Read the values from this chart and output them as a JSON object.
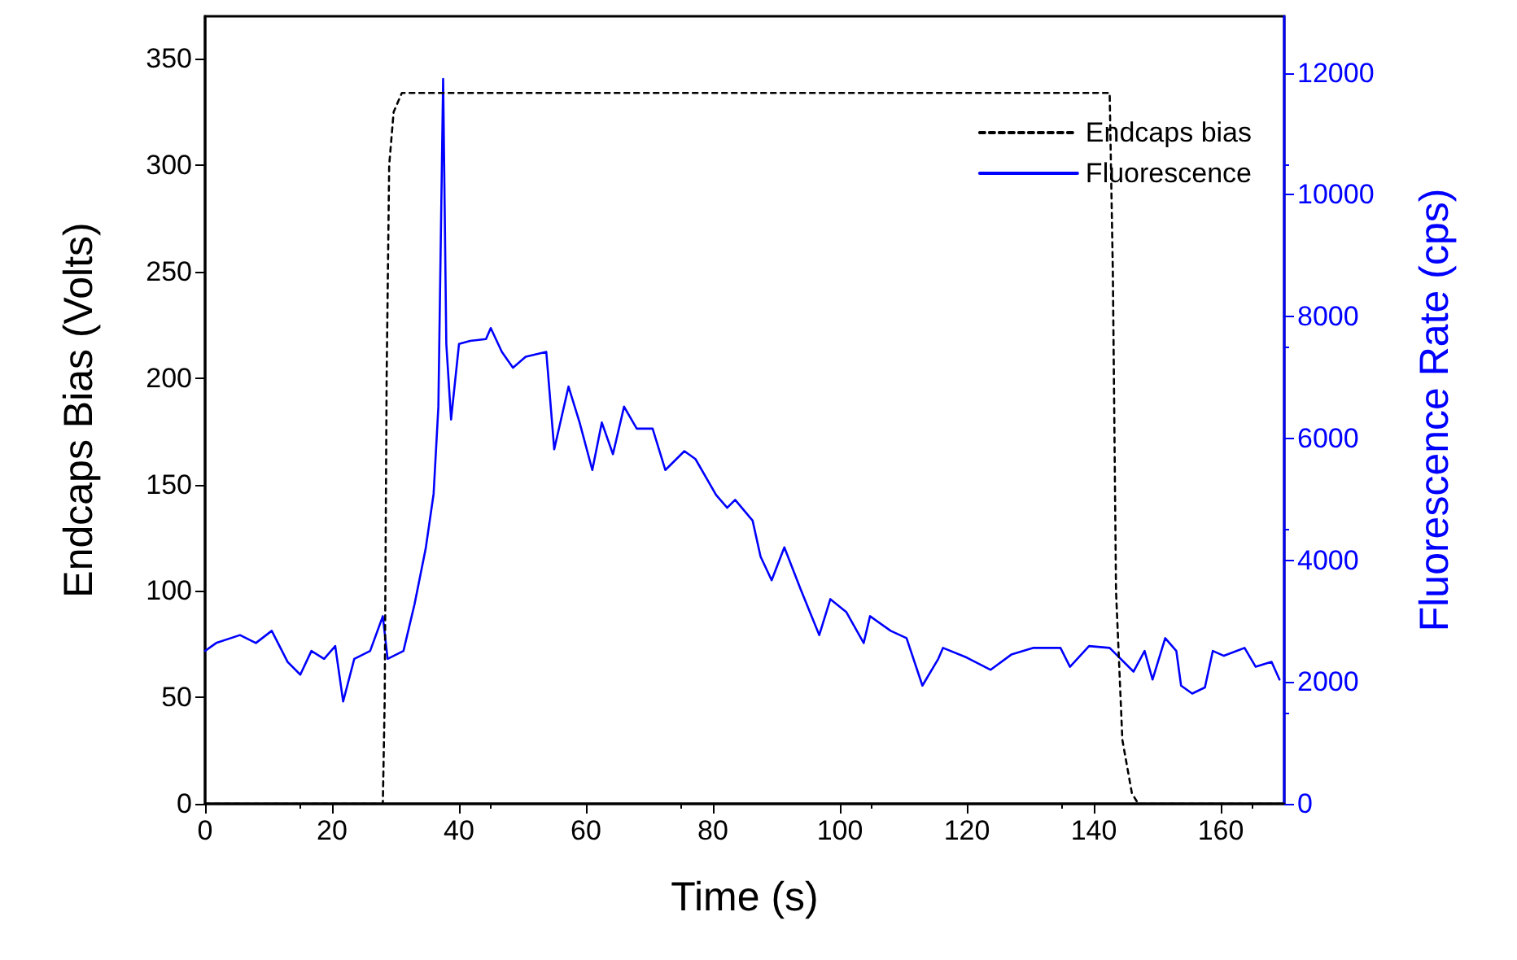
{
  "chart_data": {
    "type": "line",
    "xlabel": "Time (s)",
    "ylabel": "Endcaps Bias (Volts)",
    "y2label": "Fluorescence Rate (cps)",
    "xlim": [
      0,
      170
    ],
    "xticks": [
      0,
      20,
      40,
      60,
      80,
      100,
      120,
      140,
      160
    ],
    "ylim": [
      0,
      370
    ],
    "yticks": [
      0,
      50,
      100,
      150,
      200,
      250,
      300,
      350
    ],
    "y2lim": [
      0,
      12930
    ],
    "y2ticks": [
      0,
      2000,
      4000,
      6000,
      8000,
      10000,
      12000
    ],
    "grid": false,
    "legend": "top right",
    "marker": "none",
    "series": [
      {
        "name": "Endcaps bias",
        "color": "#000000",
        "line_style": "dotted",
        "x": [
          0,
          28,
          28.3,
          28.6,
          29,
          29.7,
          31,
          142.5,
          143,
          143.5,
          144.5,
          146,
          147,
          170
        ],
        "values": [
          0,
          0,
          50,
          200,
          300,
          325,
          334,
          334,
          250,
          100,
          30,
          5,
          0,
          0
        ]
      },
      {
        "name": "Fluorescence",
        "color": "#0000ff",
        "line_style": "solid",
        "axis": "y2",
        "x": [
          0,
          1.75,
          5.5,
          8,
          10.5,
          13,
          15,
          16.75,
          18.75,
          20.5,
          21.75,
          23.5,
          26,
          28,
          28.75,
          31.25,
          33,
          34.75,
          36,
          36.75,
          37.5,
          38,
          38.75,
          40,
          41.75,
          44.25,
          45,
          46.75,
          48.5,
          50.5,
          53.75,
          55,
          57.25,
          59,
          61,
          62.5,
          64.25,
          66,
          68,
          70.5,
          72.5,
          75.5,
          77.25,
          80.5,
          82.25,
          83.5,
          86.25,
          87.5,
          89.25,
          91.25,
          93.75,
          96.75,
          98.5,
          101,
          103.75,
          104.75,
          108,
          110.5,
          113,
          115.5,
          116.25,
          120,
          123.75,
          127,
          130.5,
          134.75,
          136.25,
          139.25,
          142.5,
          146.25,
          148,
          149.25,
          151.25,
          153,
          153.75,
          155.5,
          157.5,
          158.75,
          160.5,
          163.75,
          165.5,
          168,
          169.25
        ],
        "values": [
          2510,
          2640,
          2770,
          2640,
          2840,
          2330,
          2120,
          2510,
          2380,
          2590,
          1680,
          2380,
          2510,
          3080,
          2380,
          2510,
          3280,
          4190,
          5090,
          6520,
          11900,
          7550,
          6310,
          7550,
          7600,
          7630,
          7810,
          7420,
          7160,
          7340,
          7420,
          5820,
          6850,
          6260,
          5480,
          6260,
          5740,
          6520,
          6160,
          6160,
          5480,
          5790,
          5660,
          5070,
          4860,
          4990,
          4650,
          4060,
          3670,
          4210,
          3540,
          2770,
          3360,
          3150,
          2640,
          3080,
          2840,
          2720,
          1940,
          2380,
          2560,
          2400,
          2200,
          2450,
          2560,
          2560,
          2250,
          2590,
          2560,
          2170,
          2510,
          2040,
          2720,
          2510,
          1940,
          1810,
          1910,
          2510,
          2430,
          2560,
          2250,
          2330,
          2040
        ]
      }
    ]
  }
}
